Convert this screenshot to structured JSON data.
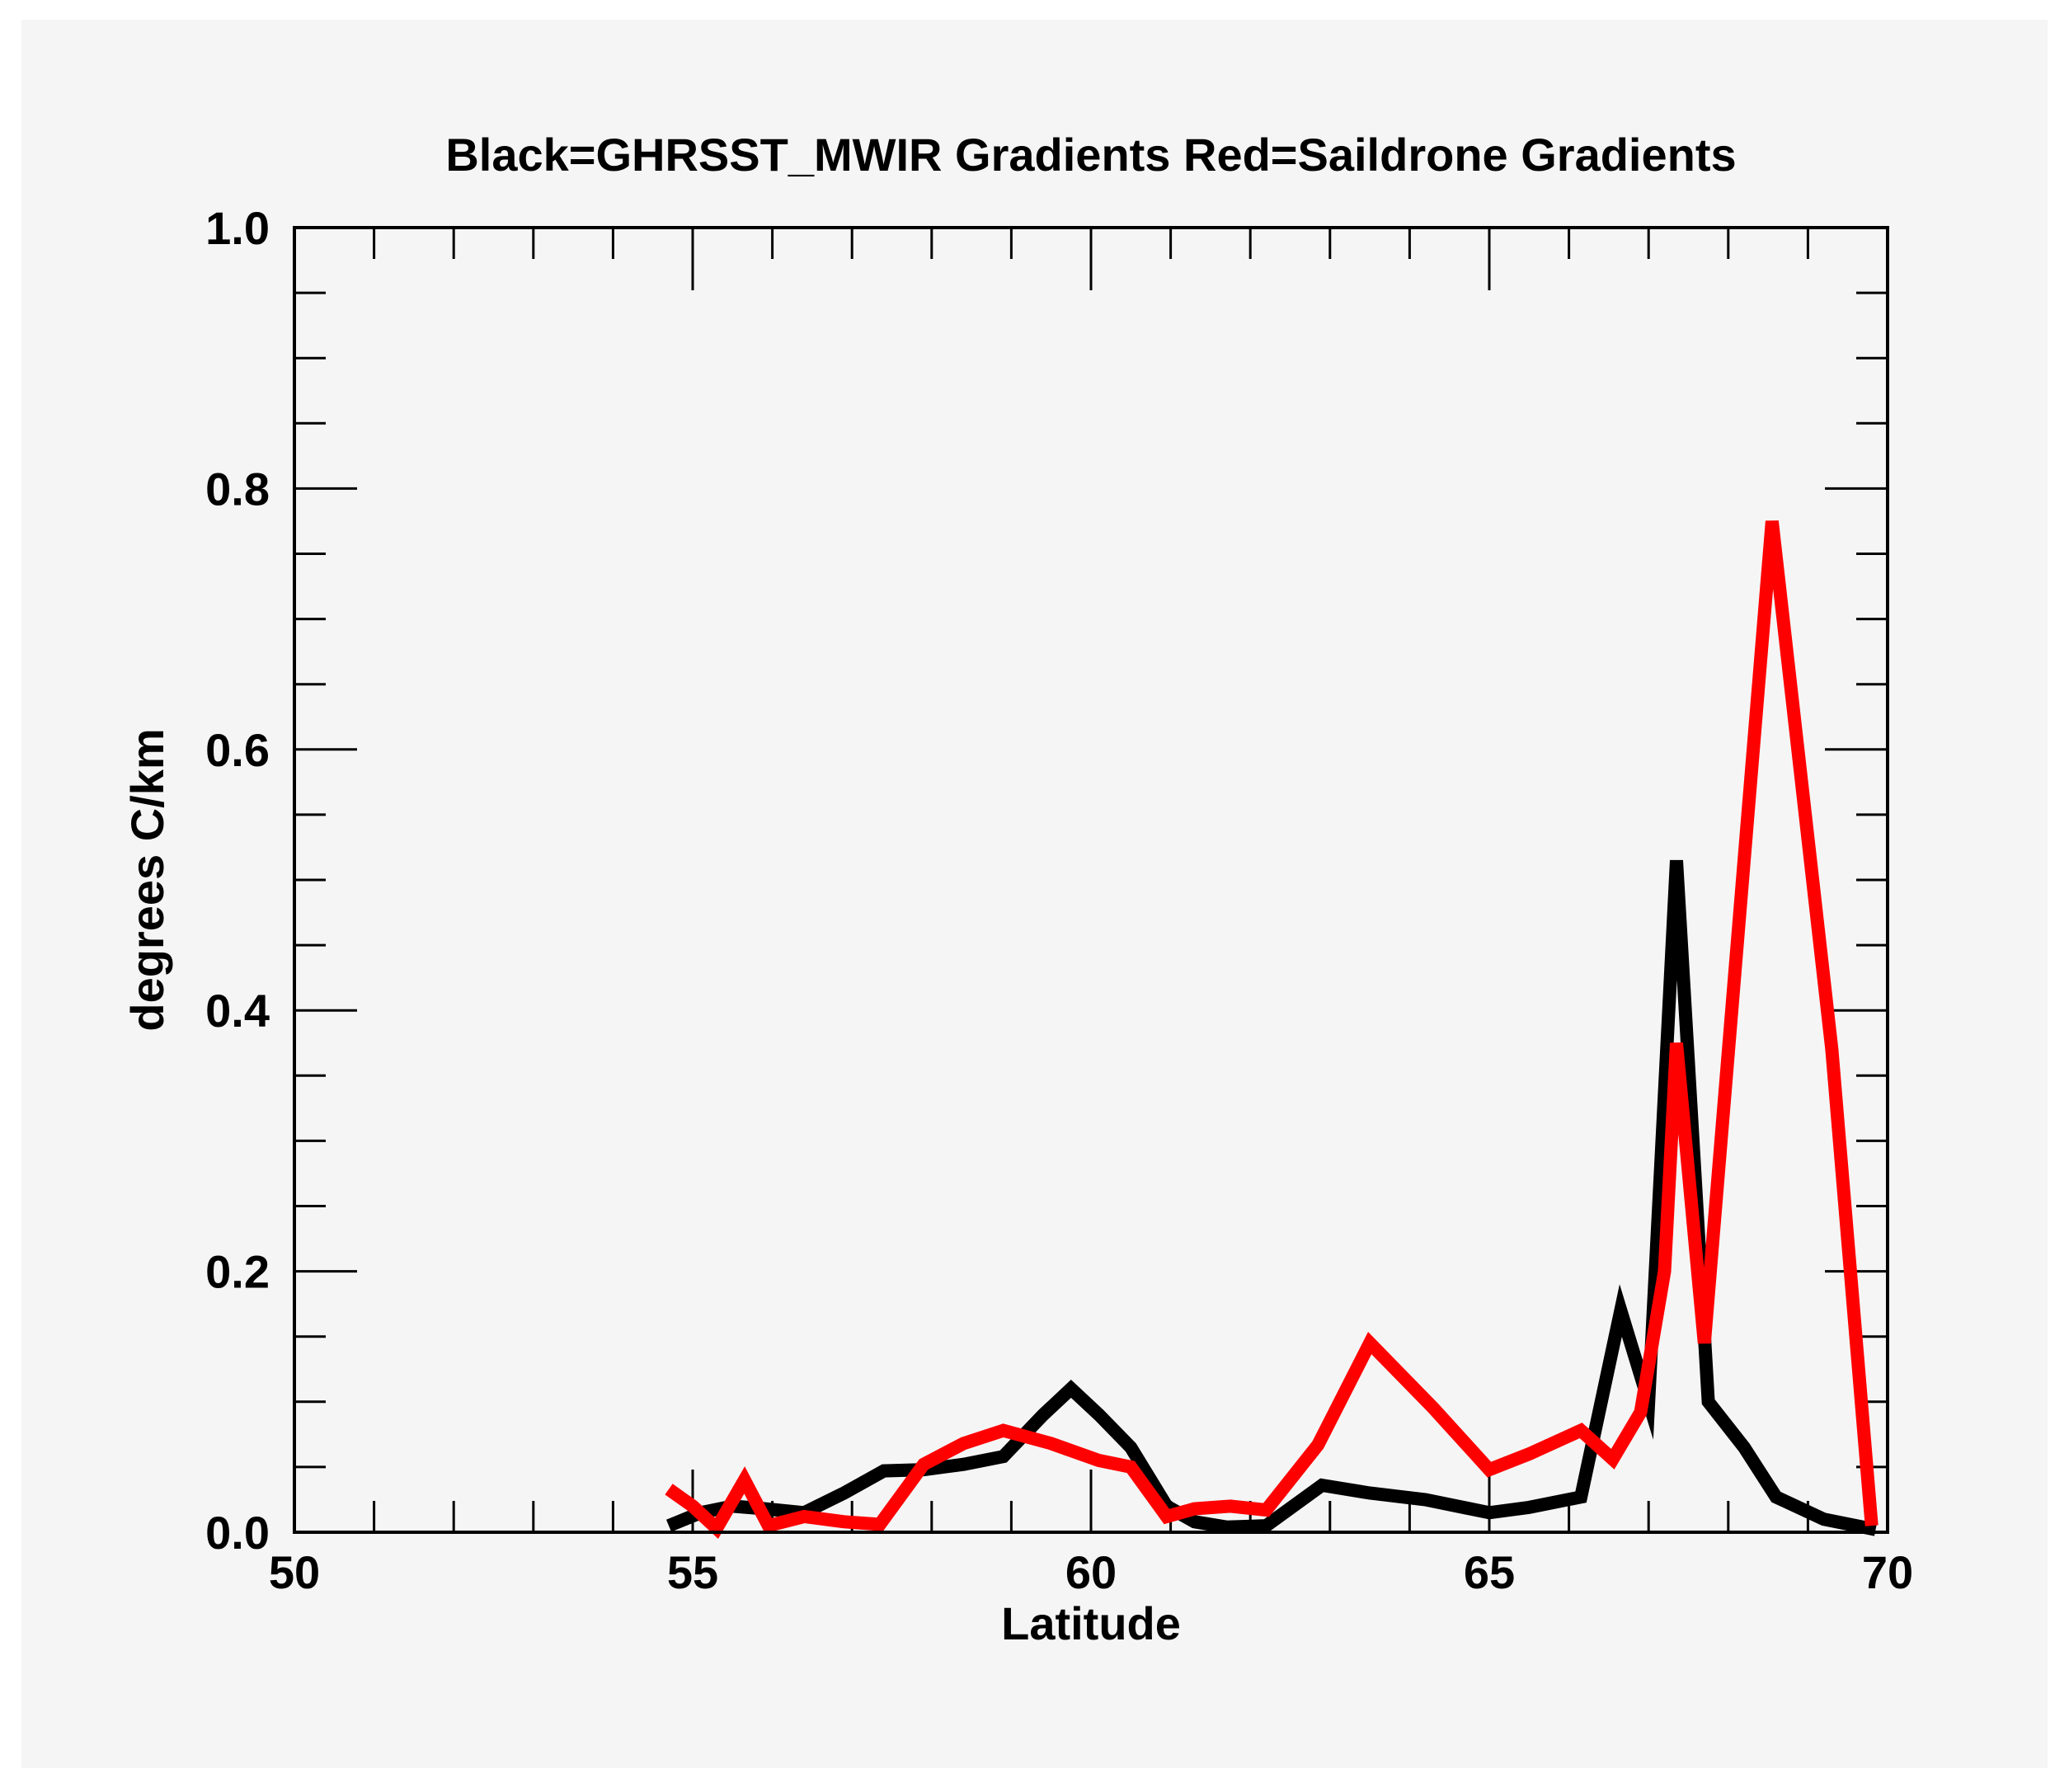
{
  "chart_data": {
    "type": "line",
    "title": "Black=GHRSST_MWIR Gradients Red=Saildrone Gradients",
    "xlabel": "Latitude",
    "ylabel": "degrees C/km",
    "xlim": [
      50,
      70
    ],
    "ylim": [
      0.0,
      1.0
    ],
    "x_ticks": [
      50,
      55,
      60,
      65,
      70
    ],
    "x_tick_labels": [
      "50",
      "55",
      "60",
      "65",
      "70"
    ],
    "y_ticks": [
      0.0,
      0.2,
      0.4,
      0.6,
      0.8,
      1.0
    ],
    "y_tick_labels": [
      "0.0",
      "0.2",
      "0.4",
      "0.6",
      "0.8",
      "1.0"
    ],
    "x_minor_step": 1,
    "y_minor_step": 0.05,
    "grid": false,
    "legend": "none",
    "series": [
      {
        "name": "GHRSST_MWIR Gradients",
        "color": "#000000",
        "x": [
          54.7,
          55.1,
          55.5,
          55.9,
          56.4,
          56.9,
          57.4,
          57.9,
          58.4,
          58.9,
          59.4,
          59.75,
          60.1,
          60.5,
          60.95,
          61.3,
          61.7,
          62.2,
          62.9,
          63.5,
          64.2,
          65.0,
          65.5,
          66.15,
          66.65,
          67.0,
          67.35,
          67.75,
          68.2,
          68.6,
          69.2,
          69.85
        ],
        "y": [
          0.005,
          0.015,
          0.02,
          0.018,
          0.015,
          0.03,
          0.047,
          0.048,
          0.052,
          0.058,
          0.09,
          0.11,
          0.09,
          0.065,
          0.02,
          0.008,
          0.004,
          0.005,
          0.036,
          0.03,
          0.025,
          0.015,
          0.019,
          0.027,
          0.17,
          0.1,
          0.515,
          0.1,
          0.065,
          0.027,
          0.01,
          0.002
        ]
      },
      {
        "name": "Saildrone Gradients",
        "color": "#ff0000",
        "x": [
          54.7,
          55.0,
          55.3,
          55.65,
          55.95,
          56.4,
          56.9,
          57.35,
          57.9,
          58.4,
          58.9,
          59.5,
          60.1,
          60.5,
          60.95,
          61.3,
          61.75,
          62.2,
          62.85,
          63.5,
          64.3,
          65.0,
          65.5,
          66.15,
          66.55,
          66.9,
          67.2,
          67.35,
          67.7,
          68.55,
          69.3,
          69.8
        ],
        "y": [
          0.033,
          0.02,
          0.003,
          0.04,
          0.005,
          0.012,
          0.008,
          0.006,
          0.052,
          0.068,
          0.078,
          0.068,
          0.055,
          0.05,
          0.012,
          0.018,
          0.02,
          0.017,
          0.067,
          0.145,
          0.095,
          0.048,
          0.06,
          0.078,
          0.056,
          0.092,
          0.2,
          0.375,
          0.145,
          0.775,
          0.37,
          0.005
        ]
      }
    ]
  }
}
